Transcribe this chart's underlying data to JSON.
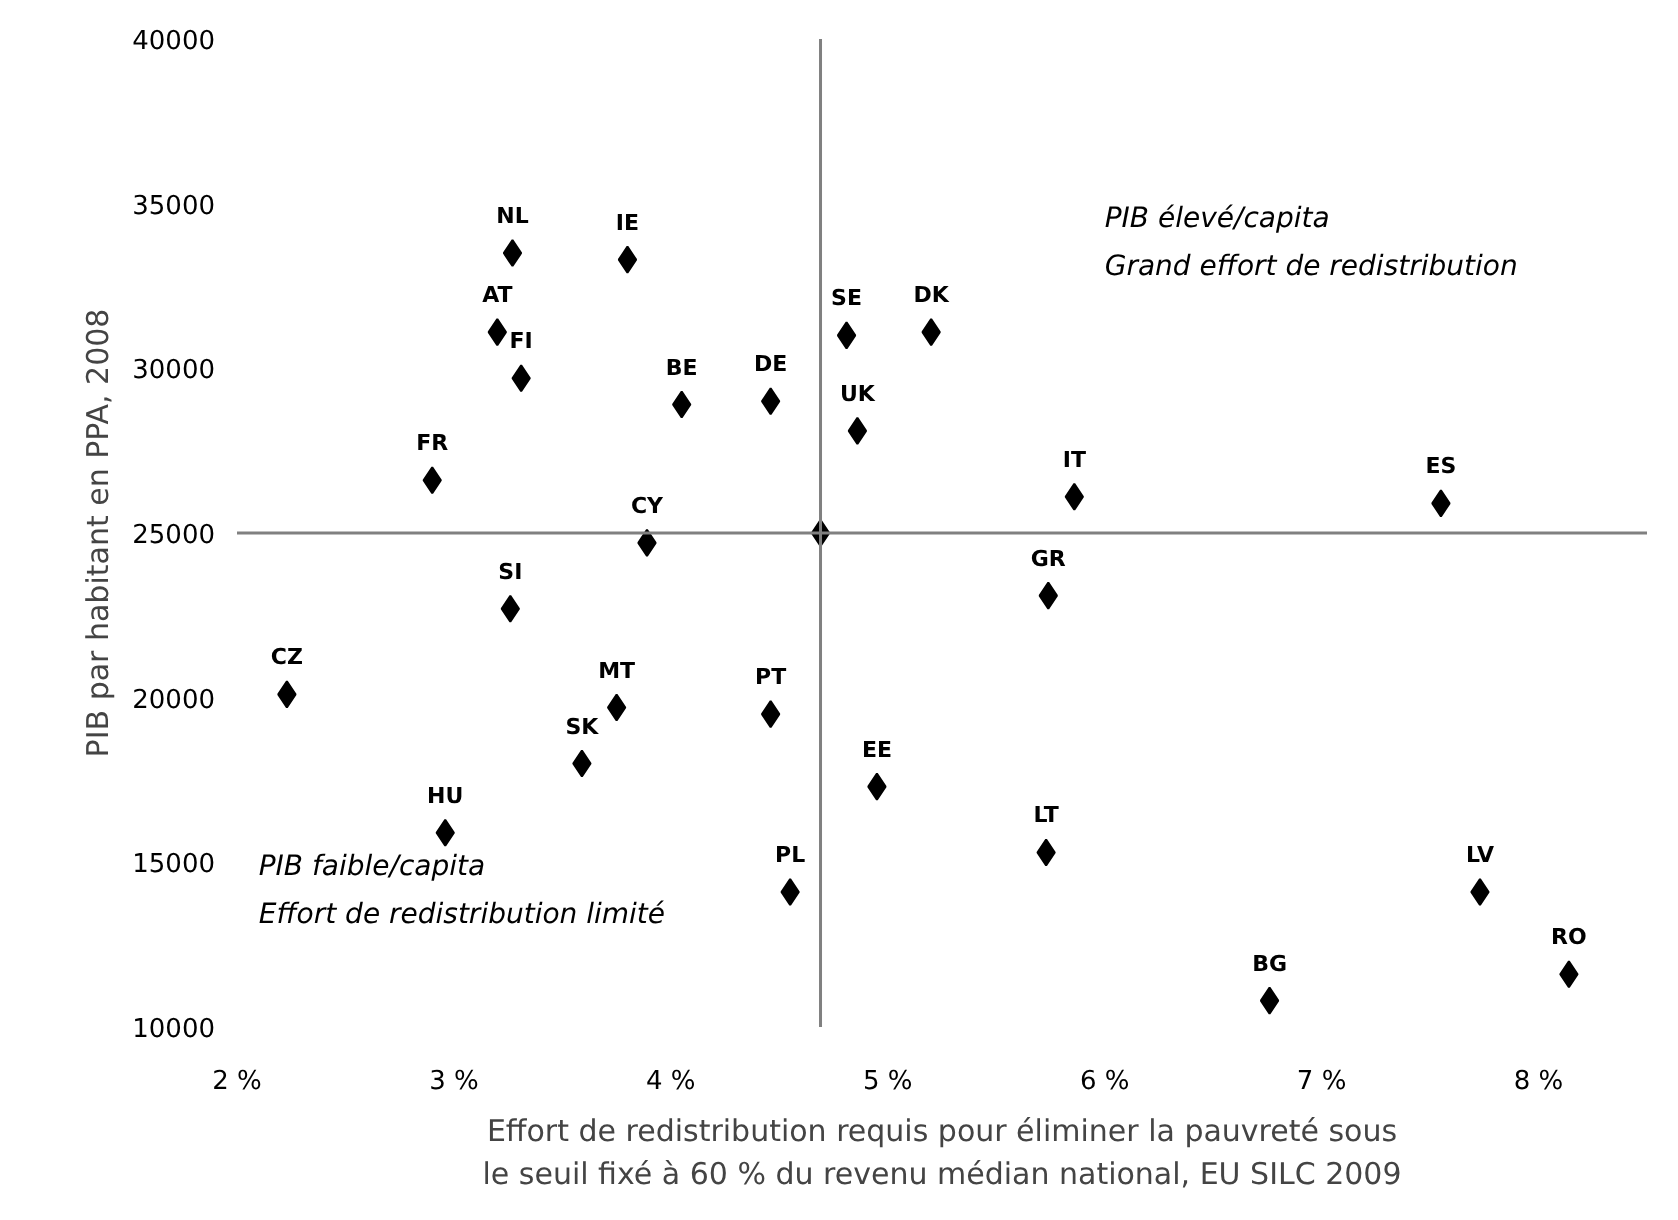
{
  "chart_data": {
    "type": "scatter",
    "xlabel": "Effort de redistribution requis pour éliminer la pauvreté sous\nle seuil fixé à 60 % du revenu médian national, EU SILC 2009",
    "ylabel": "PIB par habitant en PPA, 2008",
    "x": [
      3.27,
      3.8,
      3.2,
      3.31,
      4.05,
      4.46,
      2.9,
      3.89,
      3.26,
      4.69,
      4.81,
      5.2,
      4.86,
      5.86,
      7.55,
      5.74,
      2.23,
      3.75,
      3.59,
      4.46,
      2.96,
      4.55,
      4.95,
      5.73,
      7.73,
      8.14,
      6.76
    ],
    "series": [
      {
        "color": "#000000",
        "values": [
          33500,
          33300,
          31100,
          29700,
          28900,
          29000,
          26600,
          24700,
          22700,
          25000,
          31000,
          31100,
          28100,
          26100,
          25900,
          23100,
          20100,
          19700,
          18000,
          19500,
          15900,
          14100,
          17300,
          15300,
          14100,
          11600,
          10800
        ]
      }
    ],
    "marker": "diamond",
    "xlim": [
      2,
      8.5
    ],
    "ylim": [
      10000,
      40000
    ],
    "xticks": [
      {
        "value": 2,
        "label": "2 %"
      },
      {
        "value": 3,
        "label": "3 %"
      },
      {
        "value": 4,
        "label": "4 %"
      },
      {
        "value": 5,
        "label": "5 %"
      },
      {
        "value": 6,
        "label": "6 %"
      },
      {
        "value": 7,
        "label": "7 %"
      },
      {
        "value": 8,
        "label": "8 %"
      }
    ],
    "yticks": [
      10000,
      15000,
      20000,
      25000,
      30000,
      35000,
      40000
    ],
    "ref_lines": [
      {
        "axis": "x",
        "value": 4.69,
        "label": null,
        "color": "#808080"
      },
      {
        "axis": "y",
        "value": 25000,
        "label": null,
        "color": "#808080"
      }
    ],
    "annotations": [
      {
        "text": "NL",
        "x": 3.27,
        "y": 33500
      },
      {
        "text": "IE",
        "x": 3.8,
        "y": 33300
      },
      {
        "text": "AT",
        "x": 3.2,
        "y": 31100
      },
      {
        "text": "FI",
        "x": 3.31,
        "y": 29700
      },
      {
        "text": "BE",
        "x": 4.05,
        "y": 28900
      },
      {
        "text": "DE",
        "x": 4.46,
        "y": 29000
      },
      {
        "text": "FR",
        "x": 2.9,
        "y": 26600
      },
      {
        "text": "CY",
        "x": 3.89,
        "y": 24700
      },
      {
        "text": "SI",
        "x": 3.26,
        "y": 22700
      },
      {
        "text": "SE",
        "x": 4.81,
        "y": 31000
      },
      {
        "text": "DK",
        "x": 5.2,
        "y": 31100
      },
      {
        "text": "UK",
        "x": 4.86,
        "y": 28100
      },
      {
        "text": "IT",
        "x": 5.86,
        "y": 26100
      },
      {
        "text": "ES",
        "x": 7.55,
        "y": 25900
      },
      {
        "text": "GR",
        "x": 5.74,
        "y": 23100
      },
      {
        "text": "CZ",
        "x": 2.23,
        "y": 20100
      },
      {
        "text": "MT",
        "x": 3.75,
        "y": 19700
      },
      {
        "text": "SK",
        "x": 3.59,
        "y": 18000
      },
      {
        "text": "PT",
        "x": 4.46,
        "y": 19500
      },
      {
        "text": "HU",
        "x": 2.96,
        "y": 15900
      },
      {
        "text": "PL",
        "x": 4.55,
        "y": 14100
      },
      {
        "text": "EE",
        "x": 4.95,
        "y": 17300
      },
      {
        "text": "LT",
        "x": 5.73,
        "y": 15300
      },
      {
        "text": "LV",
        "x": 7.73,
        "y": 14100
      },
      {
        "text": "RO",
        "x": 8.14,
        "y": 11600
      },
      {
        "text": "BG",
        "x": 6.76,
        "y": 10800
      },
      "PIB élevé/capita\nGrand effort de redistribution",
      "PIB faible/capita\nEffort de redistribution limité"
    ]
  }
}
